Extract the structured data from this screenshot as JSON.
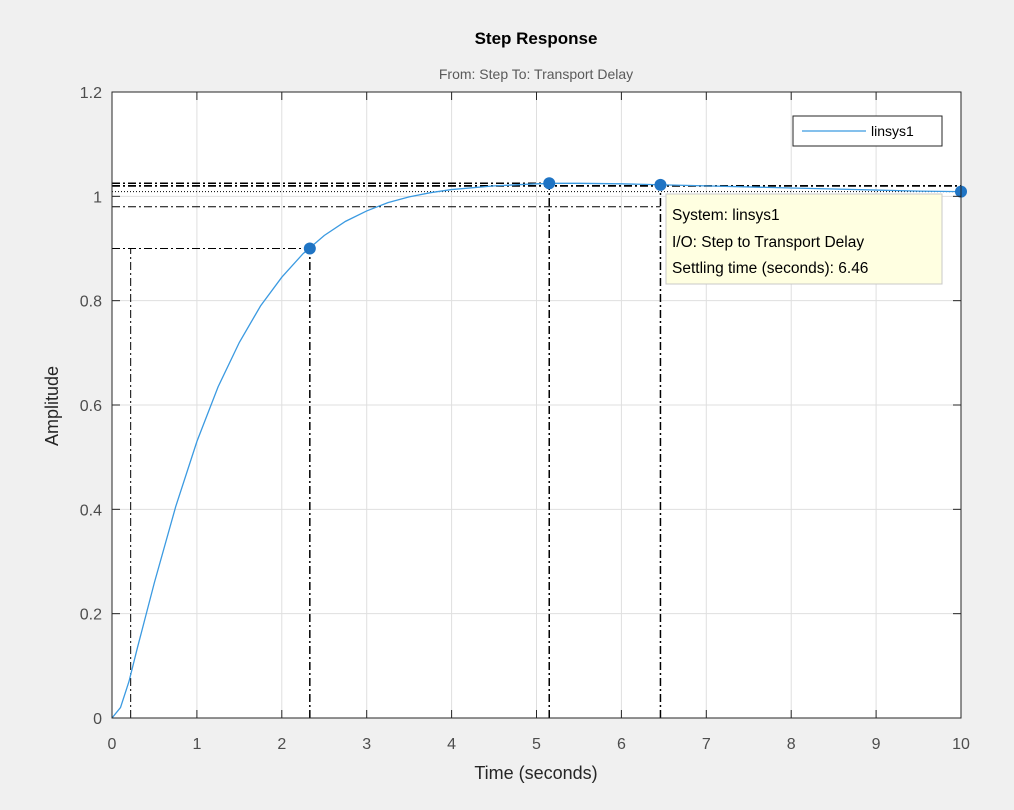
{
  "colors": {
    "figure_background": "#f0f0f0",
    "axes_background": "#ffffff",
    "grid": "#dfdfdf",
    "axis_text": "#4d4d4d",
    "response_line": "#3b9ae1",
    "marker": "#1f74c4",
    "characteristic_lines": "#000000",
    "datatip_background": "#ffffe1"
  },
  "chart_data": {
    "type": "line",
    "title": "Step Response",
    "subtitle": "From: Step  To: Transport Delay",
    "xlabel": "Time (seconds)",
    "ylabel": "Amplitude",
    "xlim": [
      0,
      10
    ],
    "ylim": [
      0,
      1.2
    ],
    "xticks": [
      "0",
      "1",
      "2",
      "3",
      "4",
      "5",
      "6",
      "7",
      "8",
      "9",
      "10"
    ],
    "yticks": [
      "0",
      "0.2",
      "0.4",
      "0.6",
      "0.8",
      "1",
      "1.2"
    ],
    "grid": true,
    "legend": {
      "position": "top-right",
      "entries": [
        "linsys1"
      ]
    },
    "series": [
      {
        "name": "linsys1",
        "x": [
          0,
          0.1,
          0.2,
          0.3,
          0.5,
          0.75,
          1.0,
          1.25,
          1.5,
          1.75,
          2.0,
          2.25,
          2.5,
          2.75,
          3.0,
          3.25,
          3.5,
          3.75,
          4.0,
          4.5,
          5.0,
          5.25,
          5.5,
          6.0,
          6.5,
          7.0,
          7.5,
          8.0,
          8.5,
          9.0,
          9.5,
          10.0
        ],
        "y": [
          0,
          0.02,
          0.07,
          0.135,
          0.26,
          0.405,
          0.53,
          0.635,
          0.72,
          0.79,
          0.845,
          0.89,
          0.925,
          0.952,
          0.972,
          0.988,
          0.999,
          1.007,
          1.013,
          1.02,
          1.024,
          1.025,
          1.025,
          1.024,
          1.022,
          1.02,
          1.018,
          1.016,
          1.014,
          1.012,
          1.01,
          1.009
        ]
      }
    ],
    "markers": [
      {
        "x": 2.33,
        "y": 0.9
      },
      {
        "x": 5.15,
        "y": 1.025
      },
      {
        "x": 6.46,
        "y": 1.022
      },
      {
        "x": 10.0,
        "y": 1.009
      }
    ],
    "characteristic_lines": {
      "rise_start": {
        "t": 0.22,
        "y": 0.1
      },
      "rise_end": {
        "t": 2.33,
        "y": 0.9
      },
      "peak": {
        "t": 5.15,
        "y": 1.025
      },
      "settling": {
        "t": 6.46,
        "y": 1.022
      },
      "steady_state": 1.009,
      "settling_band": [
        0.98,
        1.02
      ]
    },
    "datatip": {
      "lines": [
        "System: linsys1",
        "I/O: Step to Transport Delay",
        "Settling time (seconds): 6.46"
      ]
    }
  }
}
